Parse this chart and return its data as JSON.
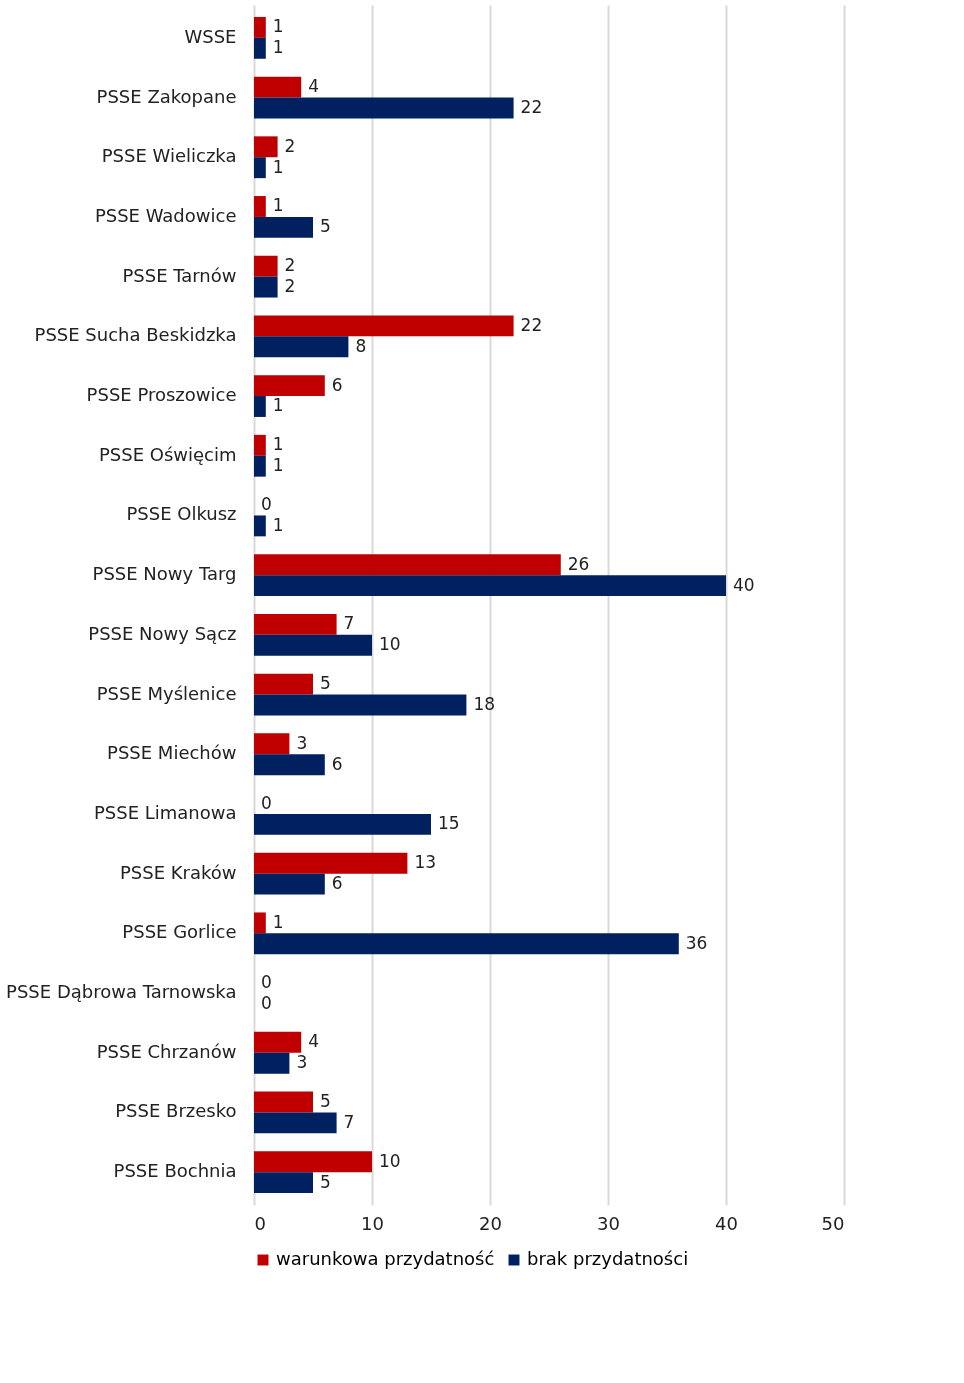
{
  "chart_data": {
    "type": "bar",
    "orientation": "horizontal",
    "categories": [
      "WSSE",
      "PSSE Zakopane",
      "PSSE Wieliczka",
      "PSSE Wadowice",
      "PSSE Tarnów",
      "PSSE Sucha Beskidzka",
      "PSSE Proszowice",
      "PSSE Oświęcim",
      "PSSE Olkusz",
      "PSSE Nowy Targ",
      "PSSE Nowy Sącz",
      "PSSE Myślenice",
      "PSSE Miechów",
      "PSSE Limanowa",
      "PSSE Kraków",
      "PSSE Gorlice",
      "PSSE Dąbrowa Tarnowska",
      "PSSE Chrzanów",
      "PSSE Brzesko",
      "PSSE Bochnia"
    ],
    "series": [
      {
        "name": "warunkowa przydatność",
        "color": "#c00000",
        "values": [
          1,
          4,
          2,
          1,
          2,
          22,
          6,
          1,
          0,
          26,
          7,
          5,
          3,
          0,
          13,
          1,
          0,
          4,
          5,
          10
        ]
      },
      {
        "name": "brak przydatności",
        "color": "#002060",
        "values": [
          1,
          22,
          1,
          5,
          2,
          8,
          1,
          1,
          1,
          40,
          10,
          18,
          6,
          15,
          6,
          36,
          0,
          3,
          7,
          5
        ]
      }
    ],
    "xlim": [
      0,
      50
    ],
    "xticks": [
      0,
      10,
      20,
      30,
      40,
      50
    ],
    "grid": "x",
    "legend": "bottom",
    "data_labels": true
  }
}
